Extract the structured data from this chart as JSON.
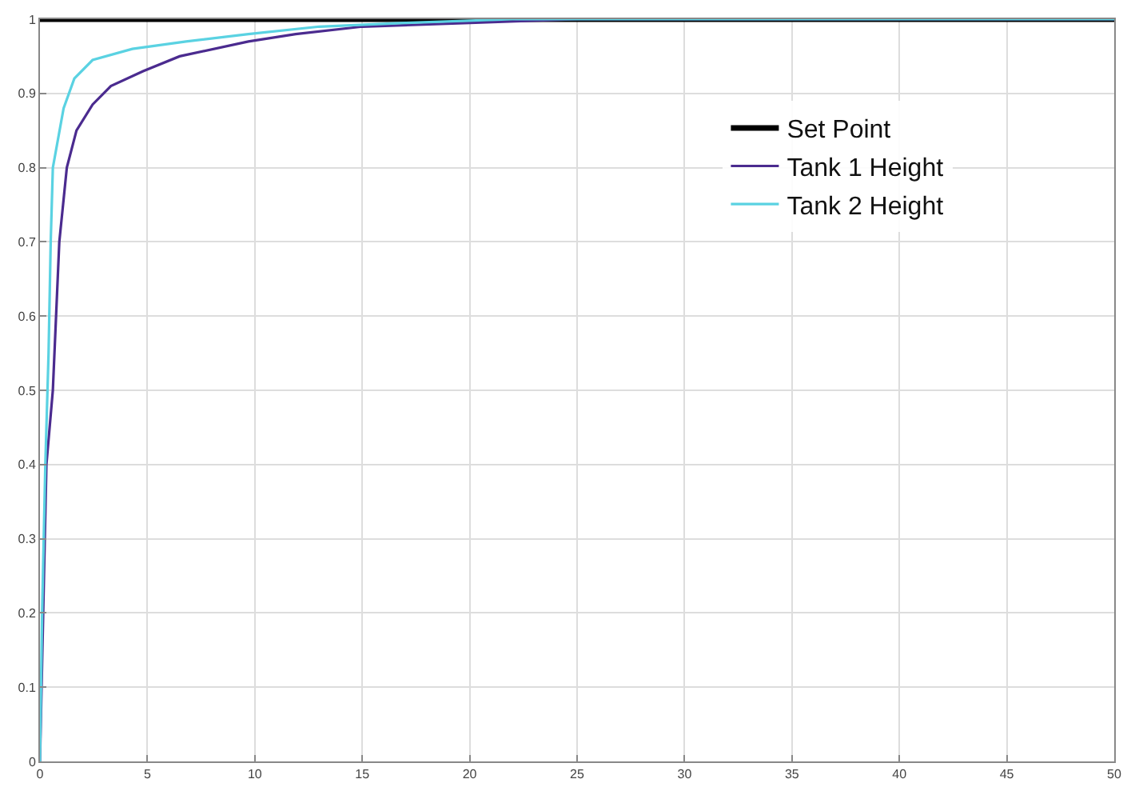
{
  "chart_data": {
    "type": "line",
    "xlim": [
      0,
      50
    ],
    "ylim": [
      0,
      1
    ],
    "xticks": [
      0,
      5,
      10,
      15,
      20,
      25,
      30,
      35,
      40,
      45,
      50
    ],
    "yticks": [
      0,
      0.1,
      0.2,
      0.3,
      0.4,
      0.5,
      0.6,
      0.7,
      0.8,
      0.9,
      1
    ],
    "grid": true,
    "legend": "top right",
    "marker": "none",
    "line_style": "solid",
    "series": [
      {
        "name": "Set Point",
        "color": "#000000",
        "x": [
          0,
          50
        ],
        "values": [
          1,
          1
        ]
      },
      {
        "name": "Tank 1 Height",
        "color": "#4b2b8f",
        "x": [
          0,
          0.15,
          0.3,
          0.6,
          0.9,
          1.25,
          1.7,
          2.45,
          3.3,
          4.8,
          6.5,
          9.7,
          11.9,
          15,
          20,
          25,
          50
        ],
        "values": [
          0,
          0.2,
          0.4,
          0.5,
          0.7,
          0.8,
          0.85,
          0.885,
          0.91,
          0.93,
          0.95,
          0.97,
          0.98,
          0.99,
          0.995,
          1,
          1
        ]
      },
      {
        "name": "Tank 2 Height",
        "color": "#5ad2e2",
        "x": [
          0,
          0.1,
          0.25,
          0.4,
          0.5,
          0.6,
          1.1,
          1.6,
          2.45,
          4.3,
          6.8,
          9.7,
          13,
          17,
          22,
          50
        ],
        "values": [
          0,
          0.2,
          0.4,
          0.55,
          0.7,
          0.8,
          0.88,
          0.92,
          0.945,
          0.96,
          0.97,
          0.98,
          0.99,
          0.995,
          1,
          1
        ]
      }
    ]
  }
}
